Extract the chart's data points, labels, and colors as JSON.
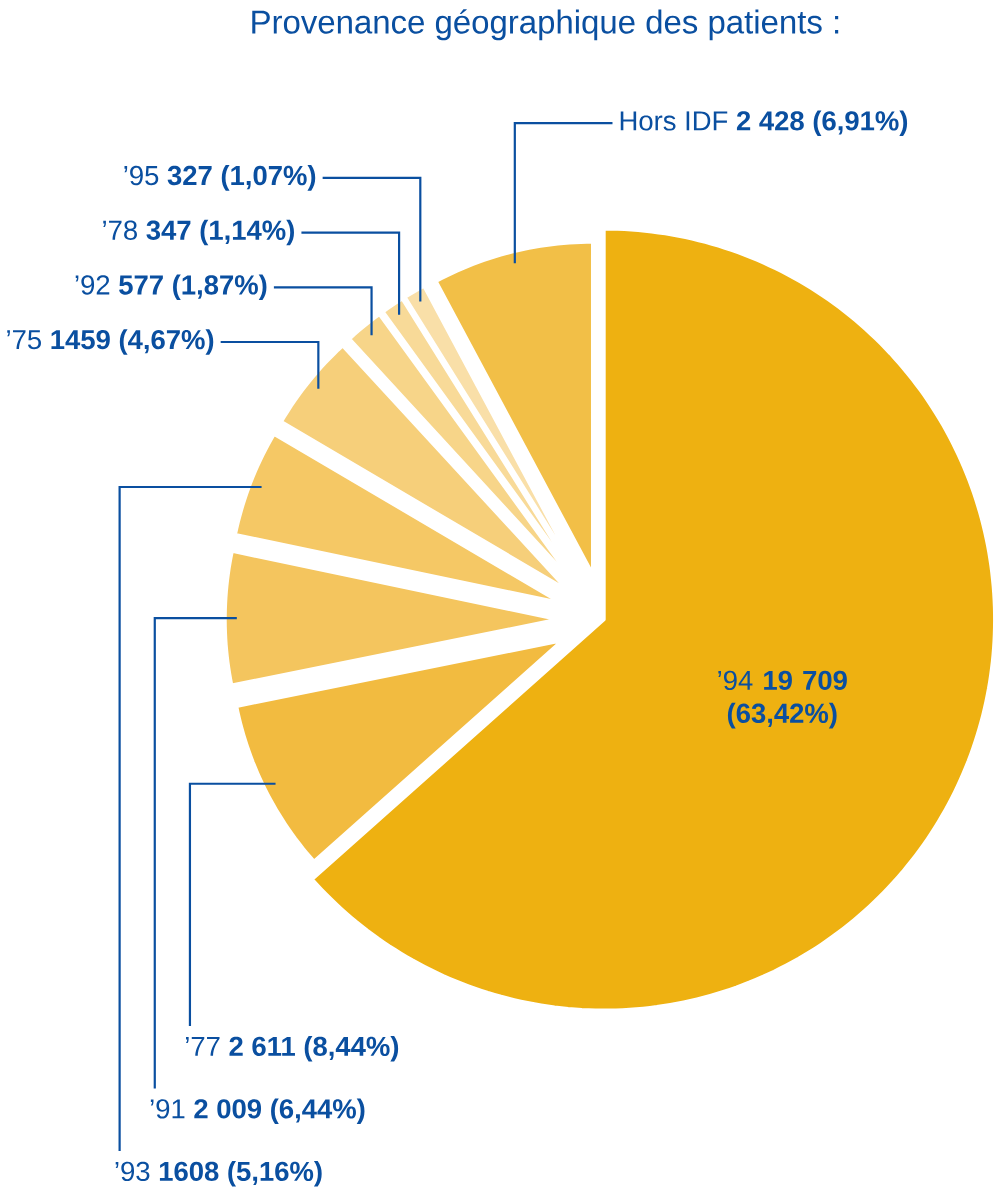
{
  "chart_data": {
    "type": "pie",
    "title": "Provenance géographique des patients :",
    "categories": [
      "’94",
      "’77",
      "’91",
      "’93",
      "’75",
      "’92",
      "’78",
      "’95",
      "Hors IDF"
    ],
    "values": [
      19709,
      2611,
      2009,
      1608,
      1459,
      577,
      347,
      327,
      2428
    ],
    "colors": [
      "#eeb111",
      "#f2bb40",
      "#f4c55e",
      "#f5c865",
      "#f6cf7a",
      "#f7d589",
      "#f8da98",
      "#f9dfa8",
      "#f2bf47"
    ],
    "value_labels": [
      "19 709 (63,42%)",
      "2 611 (8,44%)",
      "2 009 (6,44%)",
      "1608 (5,16%)",
      "1459 (4,67%)",
      "577 (1,87%)",
      "347 (1,14%)",
      "327 (1,07%)",
      "2 428 (6,91%)"
    ]
  }
}
